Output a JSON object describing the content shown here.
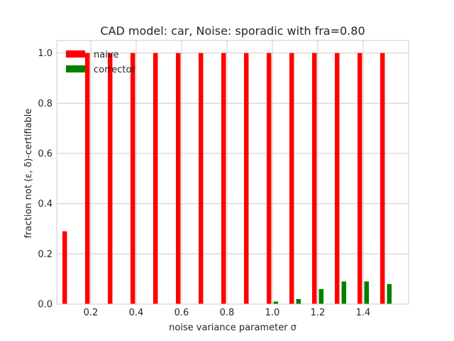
{
  "chart_data": {
    "type": "bar",
    "title": "CAD model: car, Noise: sporadic with fra=0.80",
    "xlabel": "noise variance parameter σ",
    "ylabel": "fraction not (ε, δ)-certifiable",
    "x": [
      0.1,
      0.2,
      0.3,
      0.4,
      0.5,
      0.6,
      0.7,
      0.8,
      0.9,
      1.0,
      1.1,
      1.2,
      1.3,
      1.4,
      1.5
    ],
    "xlim": [
      0.05,
      1.6
    ],
    "ylim": [
      0.0,
      1.05
    ],
    "xticks": [
      0.2,
      0.4,
      0.6,
      0.8,
      1.0,
      1.2,
      1.4
    ],
    "xtick_labels": [
      "0.2",
      "0.4",
      "0.6",
      "0.8",
      "1.0",
      "1.2",
      "1.4"
    ],
    "yticks": [
      0.0,
      0.2,
      0.4,
      0.6,
      0.8,
      1.0
    ],
    "ytick_labels": [
      "0.0",
      "0.2",
      "0.4",
      "0.6",
      "0.8",
      "1.0"
    ],
    "grid": true,
    "legend_position": "top-left",
    "series": [
      {
        "name": "naive",
        "color": "#ff0000",
        "values": [
          0.29,
          1.0,
          1.0,
          1.0,
          1.0,
          1.0,
          1.0,
          1.0,
          1.0,
          1.0,
          1.0,
          1.0,
          1.0,
          1.0,
          1.0
        ]
      },
      {
        "name": "corrector",
        "color": "#008000",
        "values": [
          0.0,
          0.0,
          0.0,
          0.0,
          0.0,
          0.0,
          0.0,
          0.0,
          0.0,
          0.01,
          0.02,
          0.06,
          0.09,
          0.09,
          0.08
        ]
      }
    ]
  }
}
